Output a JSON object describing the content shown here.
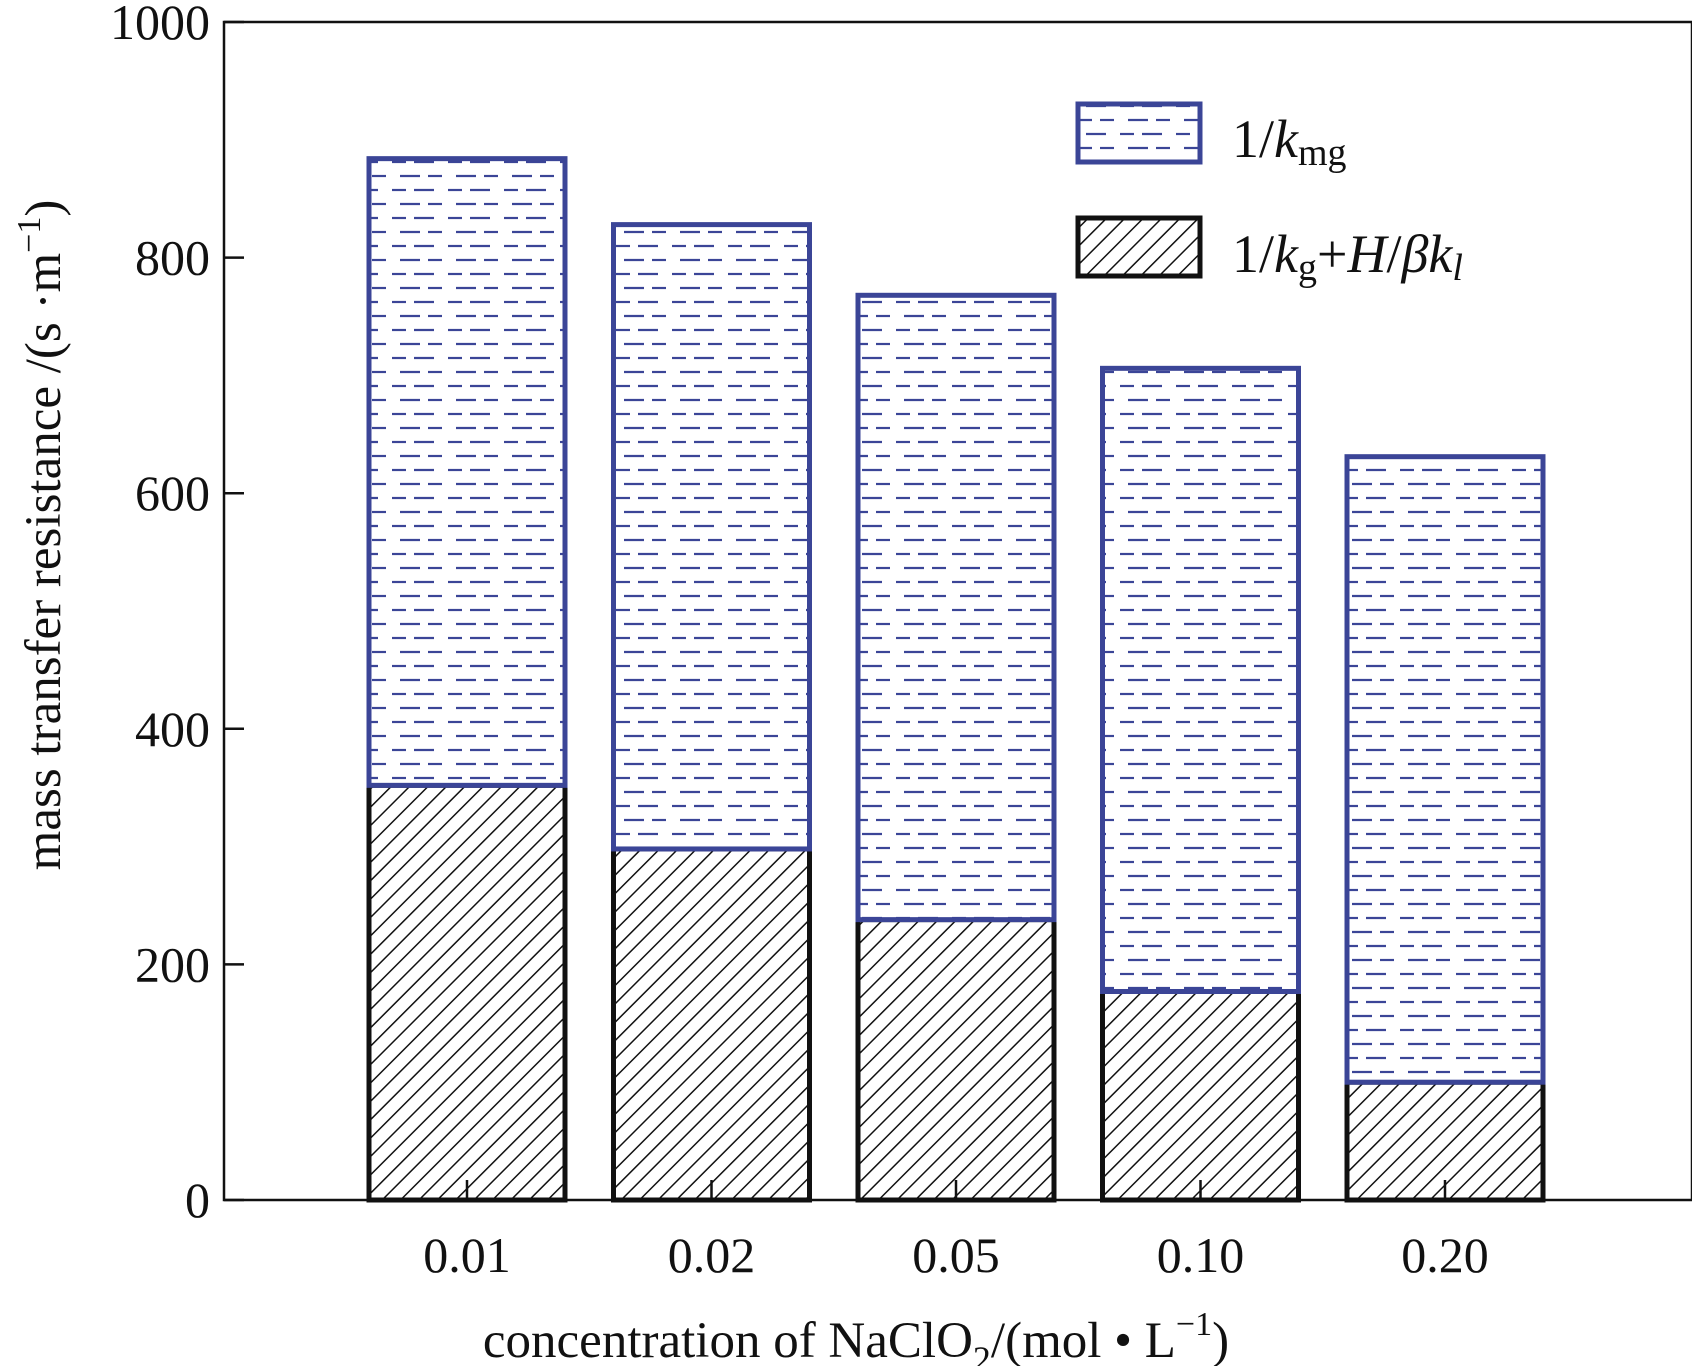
{
  "chart_data": {
    "type": "bar",
    "stacked": true,
    "title": "",
    "categories": [
      "0.01",
      "0.02",
      "0.05",
      "0.10",
      "0.20"
    ],
    "series": [
      {
        "name": "1/kg+H/βkl",
        "values": [
          352,
          298,
          238,
          177,
          100
        ],
        "color": "#111111",
        "pattern": "diagonal-hatch"
      },
      {
        "name": "1/kmg",
        "values": [
          532,
          530,
          530,
          529,
          531
        ],
        "color": "#3b4597",
        "pattern": "dashes"
      }
    ],
    "totals": [
      884,
      828,
      768,
      706,
      631
    ],
    "xlabel": {
      "pre": "concentration of NaClO",
      "sub": "2",
      "post": "/(mol • L",
      "sup": "−1",
      "close": ")"
    },
    "ylabel": {
      "pre": "mass transfer resistance /(s ·m",
      "sup": "−1",
      "close": ")"
    },
    "ylim": [
      0,
      1000
    ],
    "yticks": [
      "0",
      "200",
      "400",
      "600",
      "800",
      "1000"
    ],
    "legend": {
      "placement": "top-right",
      "item1": {
        "num": "1/",
        "k": "k",
        "sub": "mg"
      },
      "item2": {
        "num": "1/",
        "k": "k",
        "sub": "g",
        "plus": "+",
        "H": "H",
        "slash": "/",
        "beta": "β",
        "k2": "k",
        "sub2": "l"
      }
    }
  }
}
